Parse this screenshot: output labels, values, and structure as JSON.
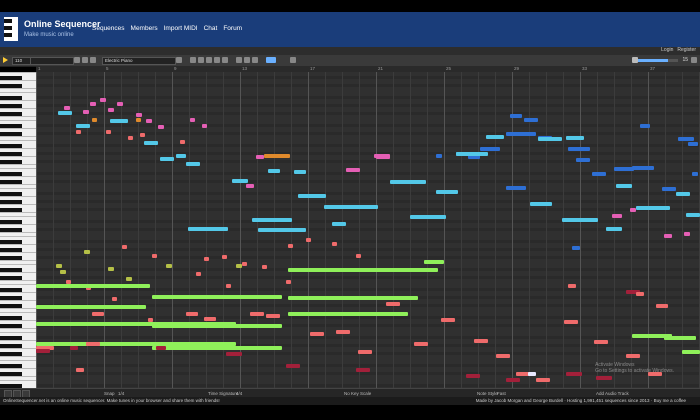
{
  "app": {
    "title": "Online Sequencer",
    "subtitle": "Make music online"
  },
  "nav": [
    "Sequences",
    "Members",
    "Import MIDI",
    "Chat",
    "Forum"
  ],
  "account": [
    "Login",
    "Register"
  ],
  "toolbar": {
    "bpm_value": "110",
    "instrument": "Electric Piano",
    "volume_value": "15",
    "volume_level": 0.75
  },
  "ruler": [
    "1",
    "5",
    "9",
    "13",
    "17",
    "21",
    "25",
    "29",
    "33",
    "37",
    "41"
  ],
  "status": {
    "snap": "1/4",
    "time_signature": "4/4",
    "scale": "No Key Scale",
    "note_style": "Fast",
    "add_audio": "Add Audio Track"
  },
  "watermark": [
    "Activate Windows",
    "Go to Settings to activate Windows."
  ],
  "footer": {
    "left": "OnlineSequencer.net is an online music sequencer. Make tunes in your browser and share them with friends!",
    "right": "Made by Jacob Morgan and George Burdell · Hosting 1,991,451 sequences since 2013 · Buy me a coffee"
  },
  "colors": {
    "header": "#1a3d7a",
    "grid": "#303030",
    "pink": "#e55fb5",
    "cyan": "#53c8e8",
    "salmon": "#ef6b6b",
    "lime": "#8ff05a",
    "blue": "#2e6fd4"
  }
}
